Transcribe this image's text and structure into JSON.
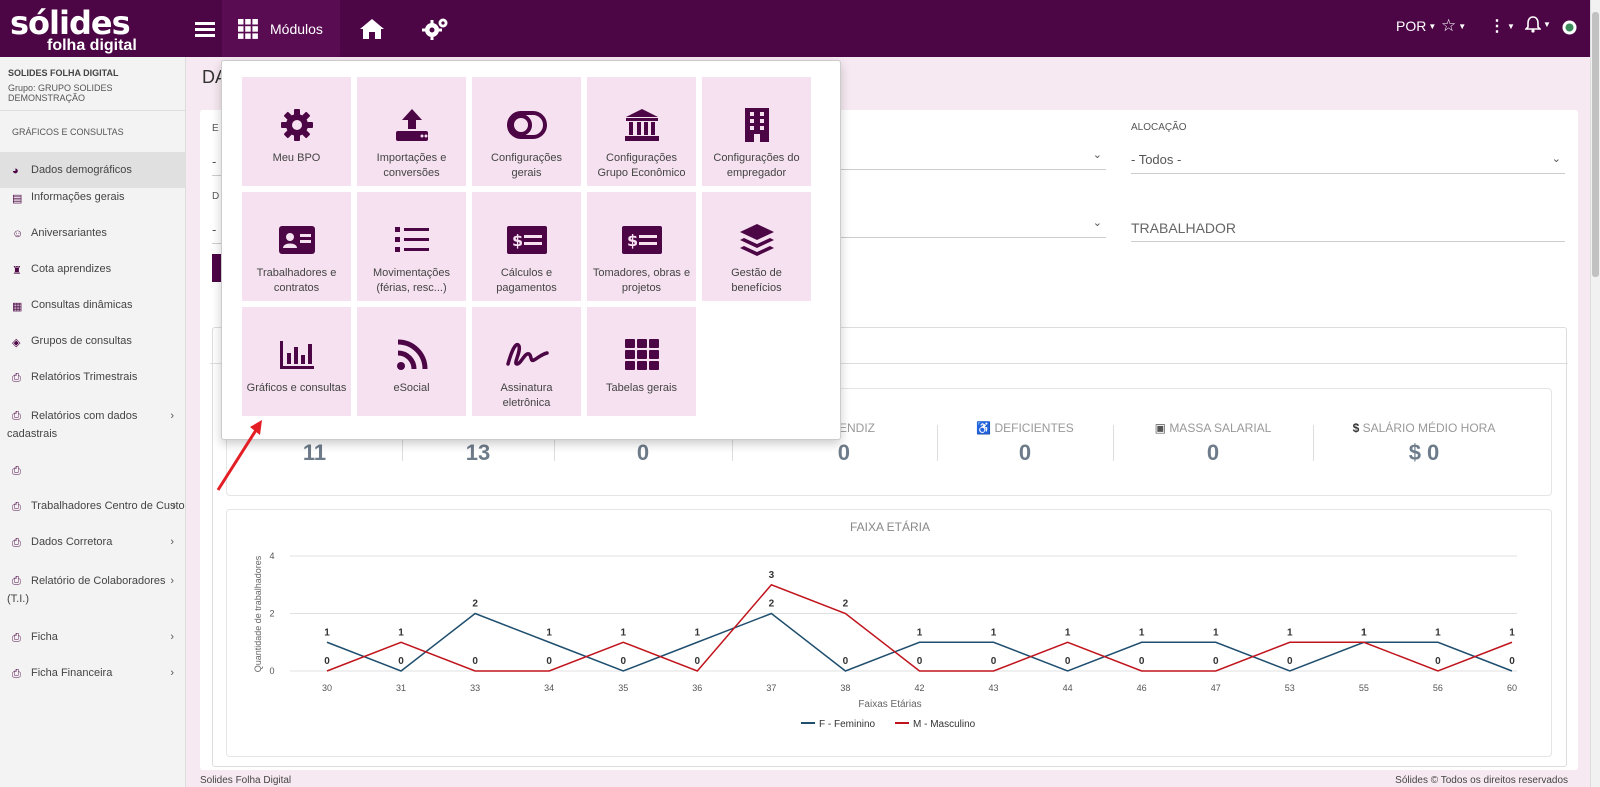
{
  "header": {
    "logo_line1": "sólides",
    "logo_line2": "folha digital",
    "modules_label": "Módulos",
    "language": "POR"
  },
  "sidebar": {
    "company": "SOLIDES FOLHA DIGITAL",
    "group": "Grupo: GRUPO SOLIDES DEMONSTRAÇÃO",
    "section": "GRÁFICOS E CONSULTAS",
    "items": [
      {
        "label": "Dados demográficos",
        "icon": "pie-chart-icon",
        "active": true
      },
      {
        "label": "Informações gerais",
        "icon": "id-card-icon"
      },
      {
        "label": "Aniversariantes",
        "icon": "smile-icon"
      },
      {
        "label": "Cota aprendizes",
        "icon": "graduate-icon"
      },
      {
        "label": "Consultas dinâmicas",
        "icon": "table-icon"
      },
      {
        "label": "Grupos de consultas",
        "icon": "layers-icon"
      },
      {
        "label": "Relatórios Trimestrais",
        "icon": "printer-icon"
      },
      {
        "label": "Relatórios com dados",
        "label2": "cadastrais",
        "icon": "printer-icon",
        "chevron": true
      },
      {
        "label": "",
        "icon": "printer-icon"
      },
      {
        "label": "Trabalhadores Centro de Custo",
        "icon": "printer-icon",
        "chevron": true
      },
      {
        "label": "Dados Corretora",
        "icon": "printer-icon",
        "chevron": true
      },
      {
        "label": "Relatório de Colaboradores",
        "label2": "(T.I.)",
        "icon": "printer-icon",
        "chevron": true
      },
      {
        "label": "Ficha",
        "icon": "printer-icon",
        "chevron": true
      },
      {
        "label": "Ficha Financeira",
        "icon": "printer-icon",
        "chevron": true
      }
    ]
  },
  "main": {
    "title": "DA",
    "filter_left_label1": "E",
    "filter_left_label2": "D",
    "alocacao_label": "ALOCAÇÃO",
    "alocacao_value": "- Todos -",
    "trabalhador_placeholder": "TRABALHADOR"
  },
  "stats": [
    {
      "label": "",
      "value": "11"
    },
    {
      "label": "",
      "value": "13"
    },
    {
      "label": "",
      "value": "0"
    },
    {
      "label": "PRENDIZ",
      "value": "0"
    },
    {
      "label": "DEFICIENTES",
      "value": "0",
      "icon": "wheelchair-icon"
    },
    {
      "label": "MASSA SALARIAL",
      "value": "0",
      "icon": "money-icon"
    },
    {
      "label": "SALÁRIO MÉDIO HORA",
      "value": "$ 0",
      "icon": "dollar-icon"
    }
  ],
  "chart_data": {
    "type": "line",
    "title": "FAIXA ETÁRIA",
    "xlabel": "Faixas Etárias",
    "ylabel": "Quantidade de trabalhadores",
    "ylim": [
      0,
      4
    ],
    "yticks": [
      0,
      2,
      4
    ],
    "categories": [
      "30",
      "31",
      "33",
      "34",
      "35",
      "36",
      "37",
      "38",
      "42",
      "43",
      "44",
      "46",
      "47",
      "53",
      "55",
      "56",
      "60"
    ],
    "series": [
      {
        "name": "F - Feminino",
        "color": "#1f4e6e",
        "values": [
          1,
          0,
          2,
          1,
          0,
          1,
          2,
          0,
          1,
          1,
          0,
          1,
          1,
          0,
          1,
          1,
          0
        ]
      },
      {
        "name": "M - Masculino",
        "color": "#c0141c",
        "values": [
          0,
          1,
          0,
          0,
          1,
          0,
          3,
          2,
          0,
          0,
          1,
          0,
          0,
          1,
          1,
          0,
          1
        ]
      }
    ],
    "grid": true,
    "legend": "bottom"
  },
  "popup": {
    "tiles": [
      {
        "label": "Meu BPO",
        "icon": "gear-icon"
      },
      {
        "label": "Importações e conversões",
        "icon": "upload-icon"
      },
      {
        "label": "Configurações gerais",
        "icon": "toggle-icon"
      },
      {
        "label": "Configurações Grupo Econômico",
        "icon": "bank-icon"
      },
      {
        "label": "Configurações do empregador",
        "icon": "building-icon"
      },
      {
        "label": "Trabalhadores e contratos",
        "icon": "id-card-icon"
      },
      {
        "label": "Movimentações (férias, resc...)",
        "icon": "list-icon"
      },
      {
        "label": "Cálculos e pagamentos",
        "icon": "money-card-icon"
      },
      {
        "label": "Tomadores, obras e projetos",
        "icon": "money-card-icon"
      },
      {
        "label": "Gestão de benefícios",
        "icon": "layers-icon"
      },
      {
        "label": "Gráficos e consultas",
        "icon": "bar-chart-icon"
      },
      {
        "label": "eSocial",
        "icon": "rss-icon"
      },
      {
        "label": "Assinatura eletrônica",
        "icon": "signature-icon"
      },
      {
        "label": "Tabelas gerais",
        "icon": "grid-icon"
      }
    ]
  },
  "footer": {
    "left": "Solides Folha Digital",
    "right": "Sólides © Todos os direitos reservados"
  },
  "colors": {
    "brand": "#4c0545",
    "tile_bg": "#f5e1ef",
    "annotation_arrow": "#e31e24"
  }
}
